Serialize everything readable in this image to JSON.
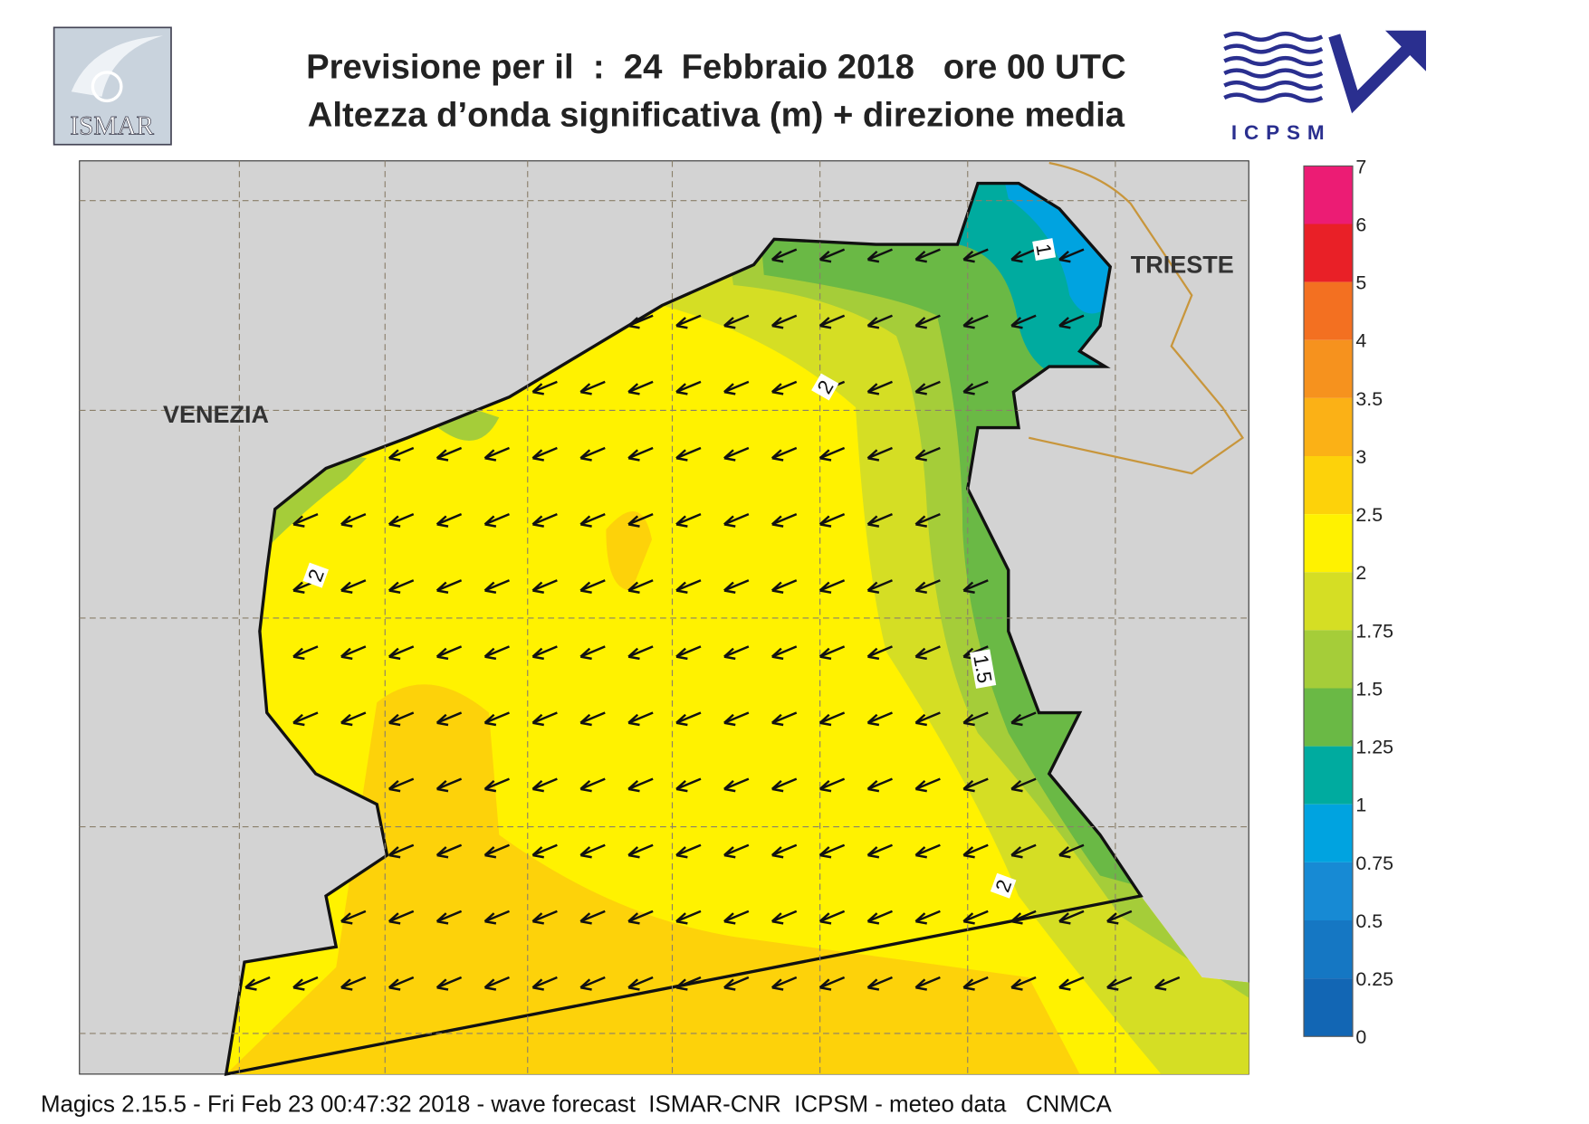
{
  "header": {
    "title": "Previsione per il  :  24  Febbraio 2018   ore 00 UTC",
    "subtitle": "Altezza d’onda significativa (m) + direzione media",
    "logo_left": "ISMAR",
    "logo_right": "ICPSM"
  },
  "map": {
    "places": [
      "VENEZIA",
      "TRIESTE"
    ],
    "contour_labels": [
      1,
      2,
      2,
      1.5,
      2
    ]
  },
  "legend": {
    "levels": [
      7,
      6,
      5,
      4,
      3.5,
      3,
      2.5,
      2,
      1.75,
      1.5,
      1.25,
      1,
      0.75,
      0.5,
      0.25,
      0
    ],
    "colors": [
      "#ec1c74",
      "#e92027",
      "#f37021",
      "#f6921e",
      "#fbb116",
      "#fdd20a",
      "#fff200",
      "#d5de24",
      "#a5cd39",
      "#6ab945",
      "#00ab9f",
      "#00a3e0",
      "#178ad4",
      "#1577c3",
      "#1266b4"
    ]
  },
  "footer": "Magics 2.15.5 - Fri Feb 23 00:47:32 2018 - wave forecast  ISMAR-CNR  ICPSM - meteo data   CNMCA"
}
